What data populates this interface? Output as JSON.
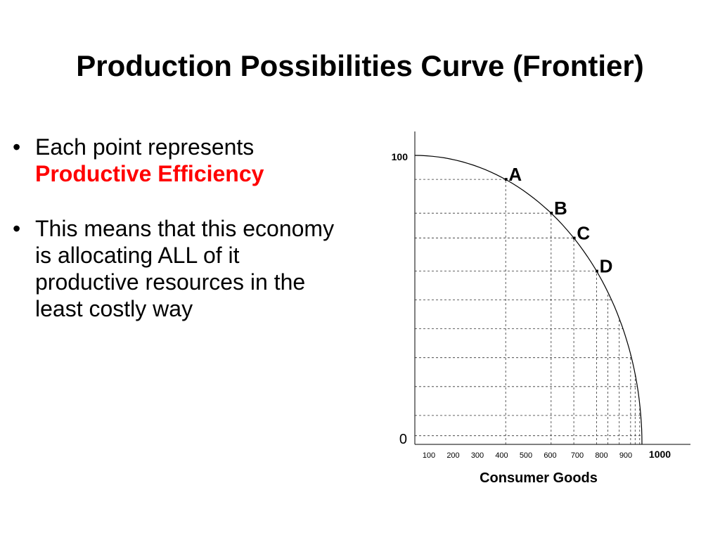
{
  "title": "Production Possibilities Curve (Frontier)",
  "bullets": [
    {
      "text": "Each point represents",
      "emphasis": "Productive Efficiency"
    },
    {
      "text": "This means that this economy is allocating ALL of it productive resources in the least costly way",
      "emphasis": ""
    }
  ],
  "colors": {
    "emphasis": "#ff0000",
    "text": "#000000"
  },
  "chart_data": {
    "type": "line",
    "xlabel": "Consumer Goods",
    "ylabel": "",
    "xlim": [
      0,
      1000
    ],
    "ylim": [
      0,
      100
    ],
    "x_ticks": [
      "100",
      "200",
      "300",
      "400",
      "500",
      "600",
      "700",
      "800",
      "900",
      "1000"
    ],
    "y_ticks": [
      "0",
      "100"
    ],
    "curve": {
      "x": [
        0,
        100,
        200,
        300,
        400,
        500,
        600,
        700,
        800,
        900,
        950,
        970,
        990,
        1000
      ],
      "y": [
        100,
        99.5,
        98,
        95.4,
        91.7,
        86.6,
        80,
        71.4,
        60,
        43.6,
        31.2,
        24.3,
        14.1,
        0
      ]
    },
    "points": [
      {
        "label": ".A",
        "x": 400,
        "y": 91.7
      },
      {
        "label": ".B",
        "x": 600,
        "y": 80
      },
      {
        "label": ".C",
        "x": 700,
        "y": 71.4
      },
      {
        "label": ".D",
        "x": 800,
        "y": 60
      }
    ],
    "grid_x": [
      400,
      600,
      700,
      800,
      850,
      900,
      950,
      970,
      990
    ],
    "grid_y": [
      91.7,
      80,
      71.4,
      60,
      50,
      40,
      30,
      20,
      10,
      3
    ],
    "grid": "dashed"
  }
}
